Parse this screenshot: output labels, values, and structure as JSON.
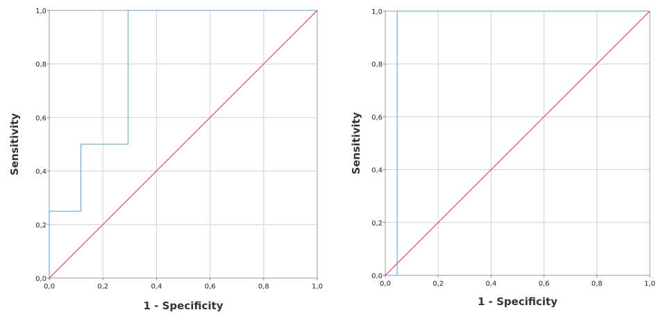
{
  "chart_data": [
    {
      "type": "line",
      "xlabel": "1 -  Specificity",
      "ylabel": "Sensitivity",
      "xlim": [
        0,
        1
      ],
      "ylim": [
        0,
        1
      ],
      "x_ticks": [
        "0,0",
        "0,2",
        "0,4",
        "0,6",
        "0,8",
        "1,0"
      ],
      "y_ticks": [
        "0,0",
        "0,2",
        "0,4",
        "0,6",
        "0,8",
        "1,0"
      ],
      "grid": true,
      "series": [
        {
          "color": "#7aaee0",
          "x": [
            0,
            0,
            0.118,
            0.118,
            0.294,
            0.294,
            1.0
          ],
          "y": [
            0,
            0.25,
            0.25,
            0.5,
            0.5,
            1.0,
            1.0
          ]
        },
        {
          "color": "#d9546e",
          "x": [
            0,
            1
          ],
          "y": [
            0,
            1
          ]
        }
      ]
    },
    {
      "type": "line",
      "xlabel": "1 -  Specificity",
      "ylabel": "Sensitivity",
      "xlim": [
        0,
        1
      ],
      "ylim": [
        0,
        1
      ],
      "x_ticks": [
        "0,0",
        "0,2",
        "0,4",
        "0,6",
        "0,8",
        "1,0"
      ],
      "y_ticks": [
        "0,0",
        "0,2",
        "0,4",
        "0,6",
        "0,8",
        "1,0"
      ],
      "grid": true,
      "series": [
        {
          "color": "#7aaee0",
          "x": [
            0,
            0.045,
            0.045,
            1.0
          ],
          "y": [
            0,
            0,
            1.0,
            1.0
          ]
        },
        {
          "color": "#d9546e",
          "x": [
            0,
            1
          ],
          "y": [
            0,
            1
          ]
        }
      ]
    }
  ]
}
